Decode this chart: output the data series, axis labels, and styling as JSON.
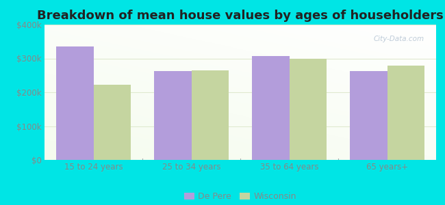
{
  "title": "Breakdown of mean house values by ages of householders",
  "categories": [
    "15 to 24 years",
    "25 to 34 years",
    "35 to 64 years",
    "65 years+"
  ],
  "de_pere_values": [
    335000,
    262000,
    308000,
    263000
  ],
  "wisconsin_values": [
    222000,
    265000,
    300000,
    278000
  ],
  "bar_color_de_pere": "#b39ddb",
  "bar_color_wisconsin": "#c5d5a0",
  "ylim": [
    0,
    400000
  ],
  "yticks": [
    0,
    100000,
    200000,
    300000,
    400000
  ],
  "ytick_labels": [
    "$0",
    "$100k",
    "$200k",
    "$300k",
    "$400k"
  ],
  "background_color": "#00e5e5",
  "legend_de_pere": "De Pere",
  "legend_wisconsin": "Wisconsin",
  "legend_marker_de_pere": "#b39ddb",
  "legend_marker_wisconsin": "#c5d5a0",
  "title_fontsize": 13,
  "bar_width": 0.38,
  "watermark": "City-Data.com",
  "tick_color": "#888888",
  "grid_color": "#e0ead0",
  "title_color": "#222222"
}
